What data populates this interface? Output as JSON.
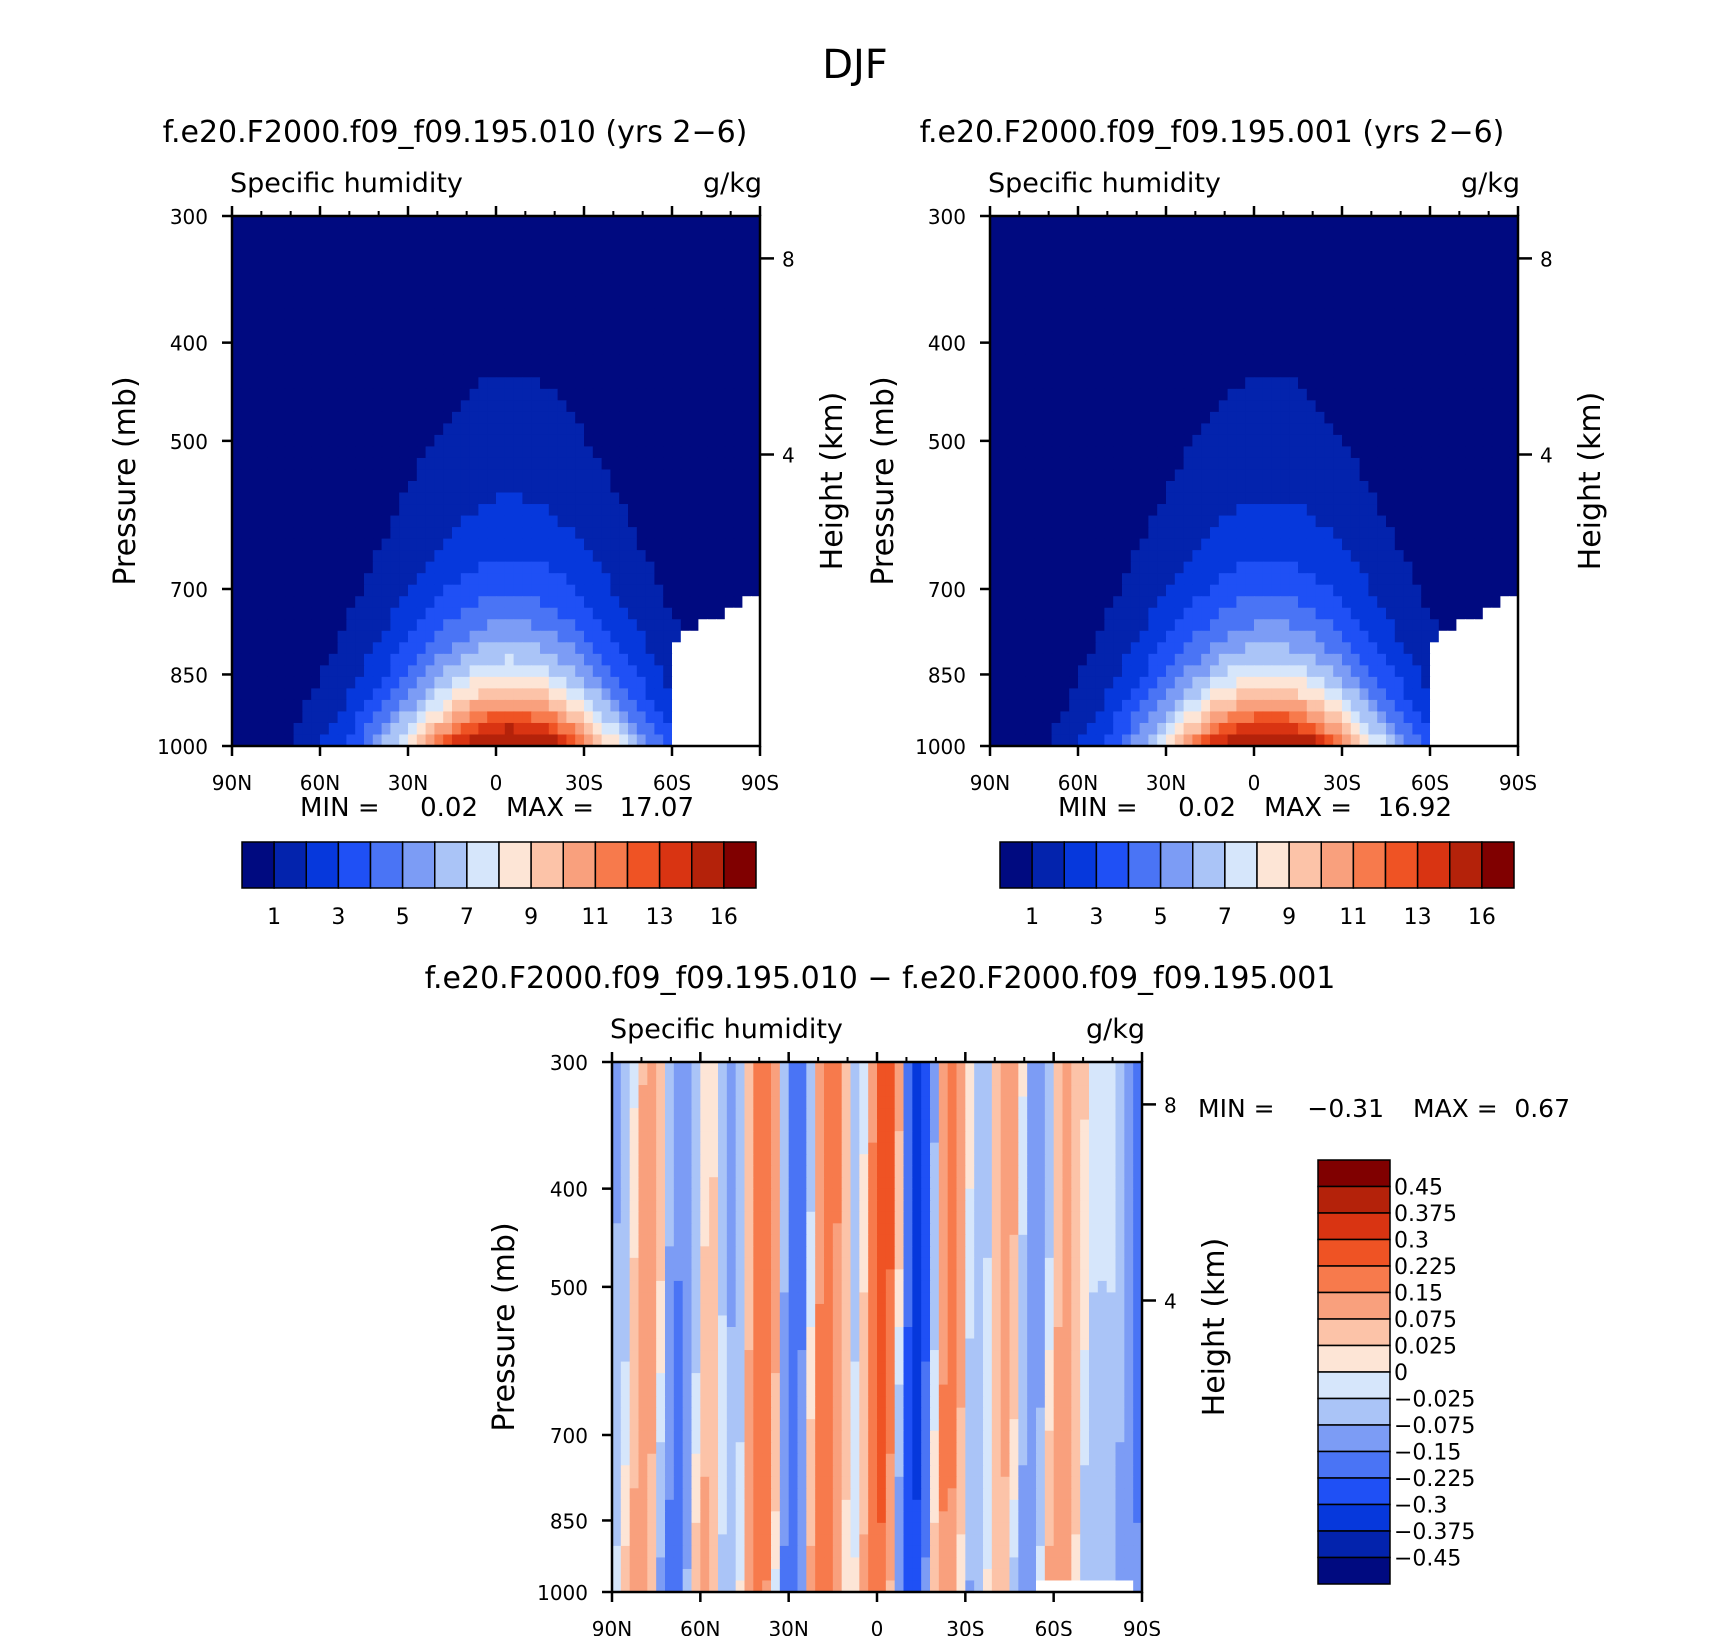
{
  "figure": {
    "title": "DJF"
  },
  "chart_data": [
    {
      "id": "p1",
      "type": "contour",
      "title": "f.e20.F2000.f09_f09.195.010 (yrs 2−6)",
      "variable": "Specific humidity",
      "units": "g/kg",
      "ylabel": "Pressure (mb)",
      "ylabel_right": "Height (km)",
      "x_ticks": [
        "90N",
        "60N",
        "30N",
        "0",
        "30S",
        "60S",
        "90S"
      ],
      "y_ticks": [
        "300",
        "400",
        "500",
        "700",
        "850",
        "1000"
      ],
      "y_right_ticks": [
        "8",
        "4"
      ],
      "min_label": "MIN =",
      "min_value": "0.02",
      "max_label": "MAX =",
      "max_value": "17.07",
      "levels": [
        1,
        2,
        3,
        4,
        5,
        6,
        7,
        8,
        9,
        10,
        11,
        12,
        13,
        14,
        16
      ],
      "colorbar_labels": [
        "1",
        "3",
        "5",
        "7",
        "9",
        "11",
        "13",
        "16"
      ]
    },
    {
      "id": "p2",
      "type": "contour",
      "title": "f.e20.F2000.f09_f09.195.001 (yrs 2−6)",
      "variable": "Specific humidity",
      "units": "g/kg",
      "ylabel": "Pressure (mb)",
      "ylabel_right": "Height (km)",
      "x_ticks": [
        "90N",
        "60N",
        "30N",
        "0",
        "30S",
        "60S",
        "90S"
      ],
      "y_ticks": [
        "300",
        "400",
        "500",
        "700",
        "850",
        "1000"
      ],
      "y_right_ticks": [
        "8",
        "4"
      ],
      "min_label": "MIN =",
      "min_value": "0.02",
      "max_label": "MAX =",
      "max_value": "16.92",
      "levels": [
        1,
        2,
        3,
        4,
        5,
        6,
        7,
        8,
        9,
        10,
        11,
        12,
        13,
        14,
        16
      ],
      "colorbar_labels": [
        "1",
        "3",
        "5",
        "7",
        "9",
        "11",
        "13",
        "16"
      ]
    },
    {
      "id": "p3",
      "type": "contour",
      "title": "f.e20.F2000.f09_f09.195.010 − f.e20.F2000.f09_f09.195.001",
      "variable": "Specific humidity",
      "units": "g/kg",
      "ylabel": "Pressure (mb)",
      "ylabel_right": "Height (km)",
      "x_ticks": [
        "90N",
        "60N",
        "30N",
        "0",
        "30S",
        "60S",
        "90S"
      ],
      "y_ticks": [
        "300",
        "400",
        "500",
        "700",
        "850",
        "1000"
      ],
      "y_right_ticks": [
        "8",
        "4"
      ],
      "min_label": "MIN =",
      "min_value": "−0.31",
      "max_label": "MAX =",
      "max_value": "0.67",
      "levels": [
        -0.45,
        -0.375,
        -0.3,
        -0.225,
        -0.15,
        -0.075,
        -0.025,
        0,
        0.025,
        0.075,
        0.15,
        0.225,
        0.3,
        0.375,
        0.45
      ],
      "colorbar_labels": [
        "0.45",
        "0.375",
        "0.3",
        "0.225",
        "0.15",
        "0.075",
        "0.025",
        "0",
        "−0.025",
        "−0.075",
        "−0.15",
        "−0.225",
        "−0.3",
        "−0.375",
        "−0.45"
      ]
    }
  ],
  "palette": [
    "#000a80",
    "#0323ad",
    "#0638dc",
    "#1f50f5",
    "#4a74f5",
    "#7c9cf5",
    "#aac4f7",
    "#d6e6fb",
    "#fde5d6",
    "#fcc3a8",
    "#f9a07d",
    "#f77a4c",
    "#ef5324",
    "#d93412",
    "#b4220a",
    "#800000"
  ]
}
